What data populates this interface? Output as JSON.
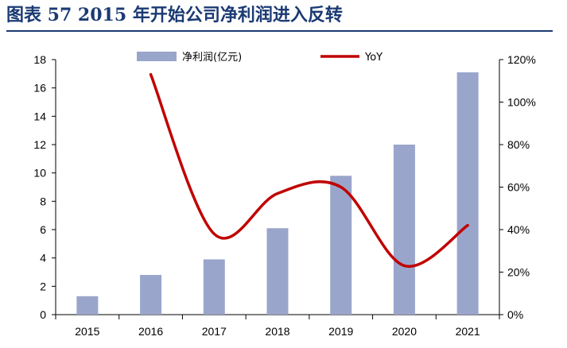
{
  "figure": {
    "title": "图表 57   2015 年开始公司净利润进入反转"
  },
  "chart_data": {
    "type": "bar",
    "categories": [
      "2015",
      "2016",
      "2017",
      "2018",
      "2019",
      "2020",
      "2021"
    ],
    "series": [
      {
        "name": "净利润(亿元)",
        "type": "bar",
        "axis": "left",
        "color": "#9aa5cc",
        "values": [
          1.3,
          2.8,
          3.9,
          6.1,
          9.8,
          12.0,
          17.1
        ]
      },
      {
        "name": "YoY",
        "type": "line",
        "axis": "right",
        "color": "#c00000",
        "values": [
          null,
          113,
          38,
          57,
          60,
          23,
          42
        ]
      }
    ],
    "left_axis": {
      "min": 0,
      "max": 18,
      "ticks": [
        "0",
        "2",
        "4",
        "6",
        "8",
        "10",
        "12",
        "14",
        "16",
        "18"
      ]
    },
    "right_axis": {
      "min": 0,
      "max": 120,
      "ticks": [
        "0%",
        "20%",
        "40%",
        "60%",
        "80%",
        "100%",
        "120%"
      ]
    },
    "grid": false,
    "legend_position": "top"
  }
}
